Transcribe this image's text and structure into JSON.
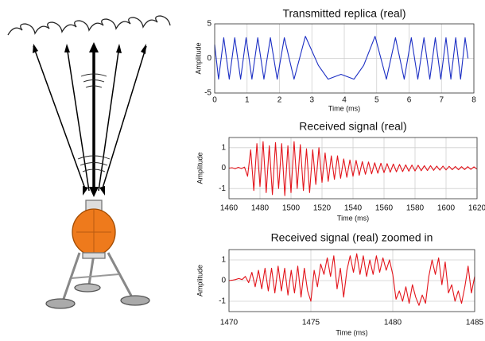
{
  "chart_data": [
    {
      "type": "line",
      "title": "Transmitted replica (real)",
      "x_label": "Time (ms)",
      "y_label": "Amplitude",
      "color": "#1c2fc4",
      "grid": true,
      "x": [
        0,
        0.12,
        0.28,
        0.45,
        0.62,
        0.8,
        0.97,
        1.15,
        1.33,
        1.52,
        1.72,
        1.93,
        2.15,
        2.45,
        2.8,
        3.2,
        3.5,
        3.9,
        4.3,
        4.6,
        4.95,
        5.3,
        5.58,
        5.85,
        6.07,
        6.27,
        6.46,
        6.64,
        6.81,
        6.98,
        7.14,
        7.29,
        7.44,
        7.59,
        7.73,
        7.82
      ],
      "values": [
        2,
        -3,
        3,
        -3,
        3,
        -3,
        3,
        -3,
        3,
        -3,
        3,
        -3,
        3,
        -3,
        3.2,
        -1,
        -3,
        -2.3,
        -3,
        -1,
        3.2,
        -3,
        3,
        -3,
        3,
        -3,
        3,
        -3,
        3,
        -3,
        3,
        -3,
        3,
        -3,
        3,
        0
      ],
      "xlim": [
        0,
        8
      ],
      "xticks": [
        0,
        1,
        2,
        3,
        4,
        5,
        6,
        7,
        8
      ],
      "ylim": [
        -5,
        5
      ],
      "yticks": [
        -5,
        0,
        5
      ]
    },
    {
      "type": "line",
      "title": "Received signal (real)",
      "x_label": "Time (ms)",
      "y_label": "Amplitude",
      "color": "#e3141b",
      "grid": true,
      "x": [
        1460,
        1462,
        1464,
        1466,
        1468,
        1470,
        1472,
        1474,
        1476,
        1478,
        1480,
        1482,
        1484,
        1486,
        1488,
        1490,
        1492,
        1494,
        1496,
        1498,
        1500,
        1502,
        1504,
        1506,
        1508,
        1510,
        1512,
        1514,
        1516,
        1518,
        1520,
        1522,
        1524,
        1526,
        1528,
        1530,
        1532,
        1534,
        1536,
        1538,
        1540,
        1542,
        1544,
        1546,
        1548,
        1550,
        1552,
        1554,
        1556,
        1558,
        1560,
        1562,
        1564,
        1566,
        1568,
        1570,
        1572,
        1574,
        1576,
        1578,
        1580,
        1582,
        1584,
        1586,
        1588,
        1590,
        1592,
        1594,
        1596,
        1598,
        1600,
        1602,
        1604,
        1606,
        1608,
        1610,
        1612,
        1614,
        1616,
        1618,
        1620
      ],
      "values": [
        0,
        0.02,
        -0.03,
        0.04,
        -0.02,
        0.05,
        -0.4,
        0.9,
        -1.1,
        1.2,
        -0.9,
        1.3,
        -1.2,
        1.1,
        -1.3,
        1.25,
        -1.0,
        1.2,
        -1.35,
        1.1,
        -1.2,
        1.3,
        -1.0,
        1.15,
        -1.1,
        0.95,
        -1.2,
        0.9,
        -0.8,
        1.0,
        -0.7,
        0.75,
        -0.65,
        0.6,
        -0.55,
        0.6,
        -0.5,
        0.45,
        -0.45,
        0.4,
        -0.4,
        0.38,
        -0.35,
        0.32,
        -0.3,
        0.3,
        -0.28,
        0.26,
        -0.25,
        0.24,
        -0.22,
        0.22,
        -0.2,
        0.2,
        -0.18,
        0.18,
        -0.17,
        0.16,
        -0.15,
        0.15,
        -0.14,
        0.14,
        -0.13,
        0.12,
        -0.12,
        0.12,
        -0.11,
        0.1,
        -0.1,
        0.1,
        -0.09,
        0.09,
        -0.08,
        0.08,
        -0.08,
        0.07,
        -0.07,
        0.07,
        -0.06,
        0.06,
        -0.05
      ],
      "xlim": [
        1460,
        1620
      ],
      "xticks": [
        1460,
        1480,
        1500,
        1520,
        1540,
        1560,
        1580,
        1600,
        1620
      ],
      "ylim": [
        -1.5,
        1.5
      ],
      "yticks": [
        -1,
        0,
        1
      ]
    },
    {
      "type": "line",
      "title": "Received signal (real) zoomed in",
      "x_label": "Time (ms)",
      "y_label": "Amplitude",
      "color": "#e3141b",
      "grid": true,
      "x": [
        1470,
        1470.2,
        1470.4,
        1470.6,
        1470.8,
        1471,
        1471.2,
        1471.4,
        1471.6,
        1471.8,
        1472,
        1472.2,
        1472.4,
        1472.6,
        1472.8,
        1473,
        1473.2,
        1473.4,
        1473.6,
        1473.8,
        1474,
        1474.2,
        1474.4,
        1474.6,
        1474.8,
        1475,
        1475.2,
        1475.4,
        1475.6,
        1475.8,
        1476,
        1476.2,
        1476.4,
        1476.6,
        1476.8,
        1477,
        1477.2,
        1477.4,
        1477.6,
        1477.8,
        1478,
        1478.2,
        1478.4,
        1478.6,
        1478.8,
        1479,
        1479.2,
        1479.4,
        1479.6,
        1479.8,
        1480,
        1480.2,
        1480.4,
        1480.6,
        1480.8,
        1481,
        1481.2,
        1481.4,
        1481.6,
        1481.8,
        1482,
        1482.2,
        1482.4,
        1482.6,
        1482.8,
        1483,
        1483.2,
        1483.4,
        1483.6,
        1483.8,
        1484,
        1484.2,
        1484.4,
        1484.6,
        1484.8,
        1485
      ],
      "values": [
        0,
        0.02,
        0.05,
        0.1,
        0.05,
        0.2,
        -0.1,
        0.4,
        -0.3,
        0.5,
        -0.4,
        0.6,
        -0.5,
        0.6,
        -0.6,
        0.7,
        -0.5,
        0.6,
        -0.7,
        0.5,
        -0.6,
        0.7,
        -0.8,
        0.6,
        -0.5,
        -1.0,
        0.5,
        -0.3,
        0.8,
        0.3,
        1.1,
        0.2,
        1.2,
        -0.4,
        0.6,
        -0.8,
        0.5,
        1.2,
        0.4,
        1.3,
        0.3,
        1.2,
        0.2,
        1.0,
        0.3,
        1.2,
        0.4,
        1.1,
        0.5,
        1.0,
        0.3,
        -0.9,
        -0.5,
        -1.0,
        -0.3,
        -1.1,
        -0.2,
        -0.8,
        -1.2,
        -0.7,
        -1.1,
        0.2,
        1.0,
        0.3,
        1.1,
        -0.2,
        0.9,
        -0.6,
        -0.2,
        -1.0,
        -0.5,
        -1.1,
        -0.3,
        0.7,
        -0.6,
        0.2
      ],
      "xlim": [
        1470,
        1485
      ],
      "xticks": [
        1470,
        1475,
        1480,
        1485
      ],
      "ylim": [
        -1.5,
        1.5
      ],
      "yticks": [
        -1,
        0,
        1
      ]
    }
  ]
}
